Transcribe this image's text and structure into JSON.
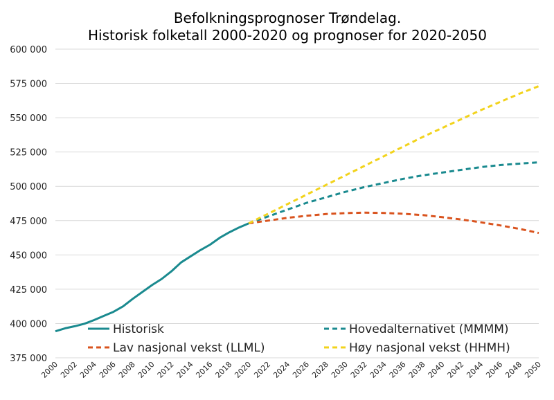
{
  "chart_data": {
    "type": "line",
    "title": [
      "Befolkningsprognoser Trøndelag.",
      "Historisk folketall 2000-2020 og prognoser for 2020-2050"
    ],
    "xlabel": "",
    "ylabel": "",
    "xlim": [
      2000,
      2050
    ],
    "ylim": [
      375000,
      600000
    ],
    "y_ticks": [
      375000,
      400000,
      425000,
      450000,
      475000,
      500000,
      525000,
      550000,
      575000,
      600000
    ],
    "y_tick_labels": [
      "375 000",
      "400 000",
      "425 000",
      "450 000",
      "475 000",
      "500 000",
      "525 000",
      "550 000",
      "575 000",
      "600 000"
    ],
    "x_ticks": [
      2000,
      2002,
      2004,
      2006,
      2008,
      2010,
      2012,
      2014,
      2016,
      2018,
      2020,
      2022,
      2024,
      2026,
      2028,
      2030,
      2032,
      2034,
      2036,
      2038,
      2040,
      2042,
      2044,
      2046,
      2048,
      2050
    ],
    "grid": "horizontal",
    "legend_position": "bottom, inside plot",
    "series": [
      {
        "name": "Historisk",
        "color": "#1a8a8f",
        "style": "solid",
        "x": [
          2000,
          2001,
          2002,
          2003,
          2004,
          2005,
          2006,
          2007,
          2008,
          2009,
          2010,
          2011,
          2012,
          2013,
          2014,
          2015,
          2016,
          2017,
          2018,
          2019,
          2020
        ],
        "y": [
          394300,
          396500,
          398000,
          399800,
          402500,
          405500,
          408500,
          412500,
          418000,
          423000,
          428000,
          432500,
          438000,
          444500,
          449000,
          453500,
          457500,
          462500,
          466500,
          470000,
          473000
        ]
      },
      {
        "name": "Hovedalternativet (MMMM)",
        "color": "#1a8a8f",
        "style": "dashed",
        "x": [
          2020,
          2022,
          2024,
          2026,
          2028,
          2030,
          2032,
          2034,
          2036,
          2038,
          2040,
          2042,
          2044,
          2046,
          2048,
          2050
        ],
        "y": [
          473000,
          478000,
          483000,
          488000,
          492000,
          496000,
          499500,
          502500,
          505500,
          508000,
          510000,
          512000,
          514000,
          515500,
          516500,
          517500
        ]
      },
      {
        "name": "Lav nasjonal vekst (LLML)",
        "color": "#d9531e",
        "style": "dashed",
        "x": [
          2020,
          2022,
          2024,
          2026,
          2028,
          2030,
          2032,
          2034,
          2036,
          2038,
          2040,
          2042,
          2044,
          2046,
          2048,
          2050
        ],
        "y": [
          473000,
          475000,
          477000,
          478500,
          479800,
          480500,
          480800,
          480600,
          480000,
          479000,
          477500,
          475800,
          473800,
          471500,
          469000,
          466000
        ]
      },
      {
        "name": "Høy nasjonal vekst (HHMH)",
        "color": "#f2d31c",
        "style": "dashed",
        "x": [
          2020,
          2022,
          2024,
          2026,
          2028,
          2030,
          2032,
          2034,
          2036,
          2038,
          2040,
          2042,
          2044,
          2046,
          2048,
          2050
        ],
        "y": [
          473000,
          480000,
          487000,
          494000,
          501000,
          508000,
          515000,
          522000,
          529000,
          536000,
          542500,
          549000,
          555500,
          561500,
          567500,
          573000
        ]
      }
    ]
  }
}
